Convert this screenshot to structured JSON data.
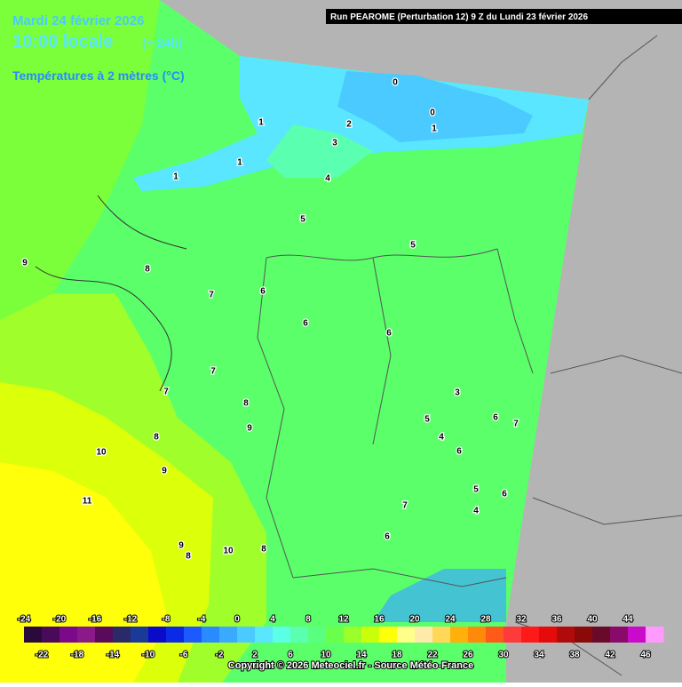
{
  "header": {
    "date": "Mardi 24 février 2026",
    "time": "10:00 locale",
    "lead": "(+ 24h)",
    "variable": "Températures à 2 mètres (°C)",
    "run": "Run PEAROME (Perturbation 12) 9 Z du Lundi 23 février 2026"
  },
  "contour_labels": [
    0,
    0,
    1,
    2,
    3,
    1,
    1,
    1,
    4,
    5,
    5,
    9,
    8,
    7,
    6,
    6,
    6,
    7,
    7,
    8,
    9,
    8,
    3,
    5,
    6,
    7,
    4,
    6,
    10,
    9,
    11,
    7,
    5,
    6,
    4,
    6,
    9,
    8,
    10,
    8
  ],
  "colorbar": {
    "labels": [
      -24,
      -22,
      -20,
      -18,
      -16,
      -14,
      -12,
      -10,
      -8,
      -6,
      -4,
      -2,
      0,
      2,
      4,
      6,
      8,
      10,
      12,
      14,
      16,
      18,
      20,
      22,
      24,
      26,
      28,
      30,
      32,
      34,
      36,
      38,
      40,
      42,
      44,
      46
    ],
    "colors": [
      "#2a0a3a",
      "#4a0a5a",
      "#7a0a8a",
      "#8a1a8a",
      "#5a0a5a",
      "#2a2a6a",
      "#1a3a9a",
      "#0a0aca",
      "#0a2ae6",
      "#1a5aff",
      "#2a8aff",
      "#3aaaff",
      "#4acaff",
      "#5ae6ff",
      "#5affe6",
      "#5affb0",
      "#5aff80",
      "#6aff4a",
      "#9aff2a",
      "#caff0a",
      "#ffff0a",
      "#ffff8a",
      "#ffeaaa",
      "#ffd85a",
      "#ffb00a",
      "#ff8a0a",
      "#ff5a1a",
      "#ff3a3a",
      "#ff1a1a",
      "#e60a0a",
      "#b00a0a",
      "#8a0a0a",
      "#6a0a2a",
      "#8a0a6a",
      "#ca0aca",
      "#ff9aff"
    ]
  },
  "copyright": "Copyright © 2026 Meteociel.fr - Source Météo-France"
}
